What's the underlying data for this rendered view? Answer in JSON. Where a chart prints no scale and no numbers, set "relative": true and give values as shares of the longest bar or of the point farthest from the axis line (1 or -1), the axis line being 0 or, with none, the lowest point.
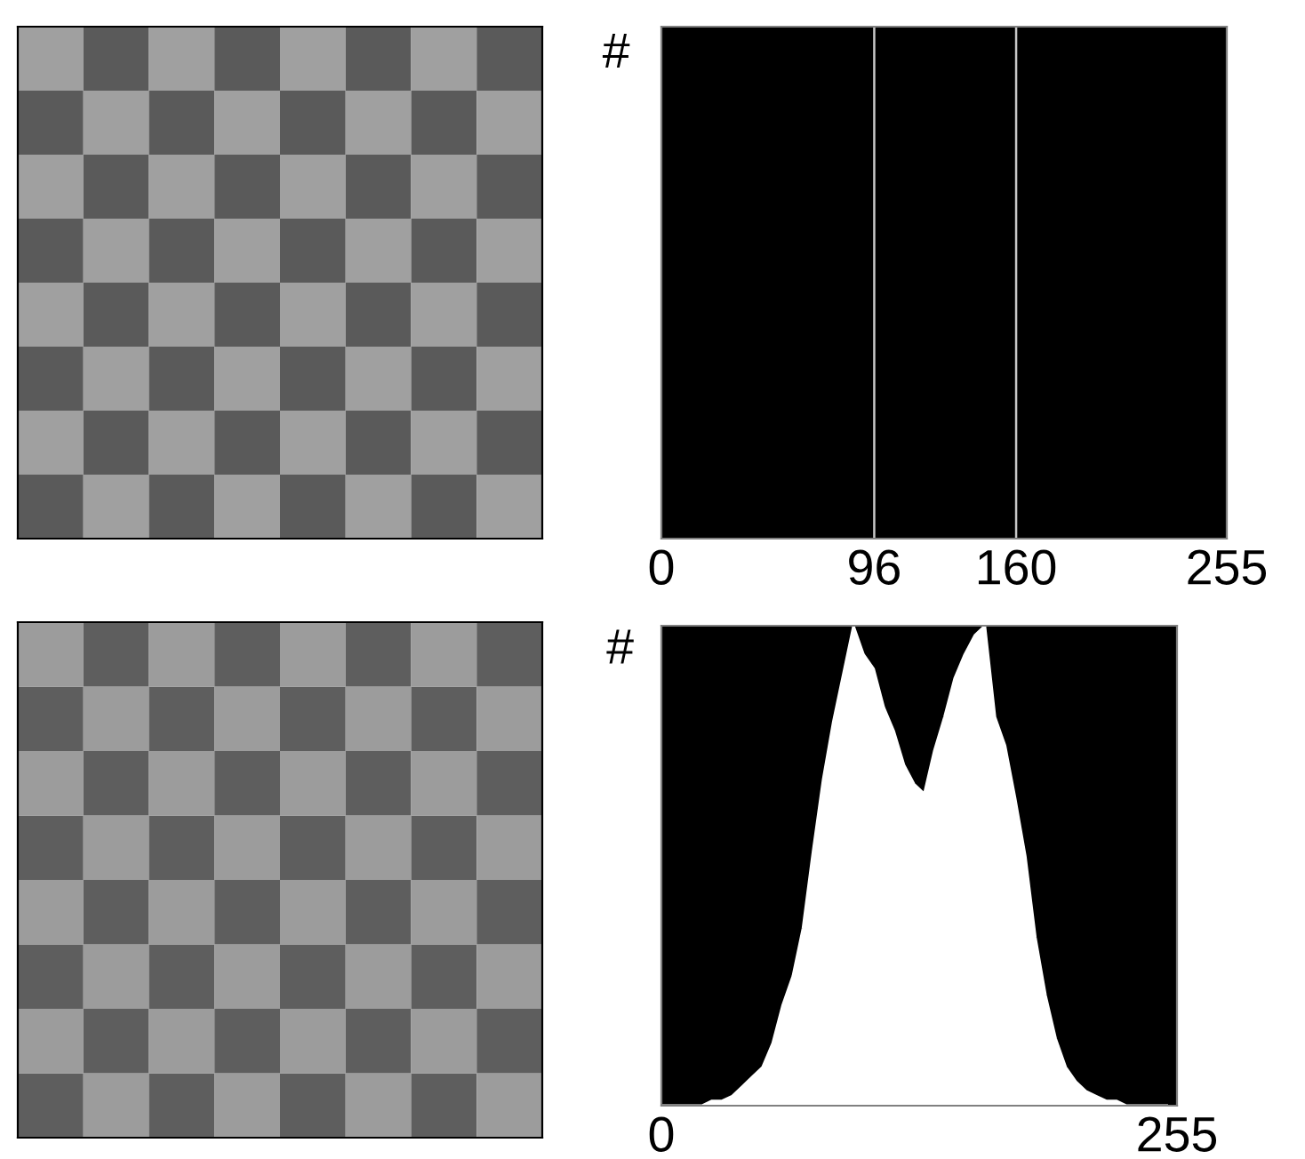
{
  "chart_data": [
    {
      "type": "bar",
      "relative": true,
      "ylabel": "#",
      "xlim": [
        0,
        255
      ],
      "xticks": [
        0,
        96,
        160,
        255
      ],
      "color": "#c8c8c8",
      "x": [
        96,
        160
      ],
      "values": [
        1,
        1
      ]
    },
    {
      "type": "area",
      "relative": true,
      "ylabel": "#",
      "xlim": [
        0,
        255
      ],
      "xticks": [
        0,
        255
      ],
      "color": "#ffffff",
      "x": [
        0,
        5,
        10,
        15,
        20,
        25,
        30,
        35,
        40,
        45,
        50,
        55,
        60,
        65,
        70,
        75,
        80,
        85,
        90,
        95,
        100,
        105,
        110,
        115,
        120,
        125,
        130,
        135,
        140,
        145,
        150,
        155,
        160,
        165,
        170,
        175,
        180,
        185,
        190,
        195,
        200,
        205,
        210,
        215,
        220,
        225,
        230,
        235,
        240,
        245,
        250
      ],
      "values": [
        0,
        0,
        0,
        0,
        0,
        0.01,
        0.01,
        0.02,
        0.04,
        0.06,
        0.08,
        0.13,
        0.21,
        0.27,
        0.37,
        0.53,
        0.68,
        0.8,
        0.9,
        1,
        0.94,
        0.91,
        0.83,
        0.78,
        0.71,
        0.67,
        0.65,
        0.74,
        0.81,
        0.89,
        0.94,
        0.98,
        1,
        0.81,
        0.75,
        0.64,
        0.52,
        0.35,
        0.23,
        0.14,
        0.08,
        0.05,
        0.03,
        0.02,
        0.01,
        0.01,
        0,
        0,
        0,
        0,
        0
      ]
    }
  ]
}
